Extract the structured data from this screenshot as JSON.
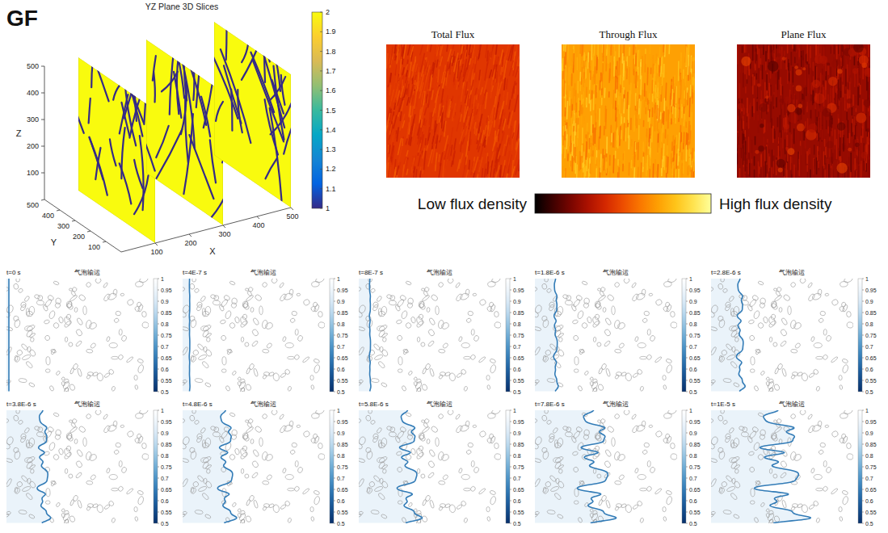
{
  "chart_data": [
    {
      "type": "slice3d",
      "label": "GF",
      "title": "YZ Plane 3D Slices",
      "x_label": "X",
      "y_label": "Y",
      "z_label": "Z",
      "xlim": [
        0,
        500
      ],
      "ylim": [
        0,
        500
      ],
      "zlim": [
        0,
        500
      ],
      "xticks": [
        100,
        200,
        300,
        400,
        500
      ],
      "yticks": [
        100,
        200,
        300,
        400,
        500
      ],
      "zticks": [
        100,
        200,
        300,
        400,
        500
      ],
      "slices": [
        100,
        300,
        500
      ],
      "colorbar": {
        "range": [
          1,
          2
        ],
        "ticks": [
          1,
          1.1,
          1.2,
          1.3,
          1.4,
          1.5,
          1.6,
          1.7,
          1.8,
          1.9,
          2
        ]
      }
    },
    {
      "type": "heatmap",
      "panels": [
        "Total Flux",
        "Through Flux",
        "Plane Flux"
      ],
      "colorbar": {
        "low_label": "Low flux density",
        "high_label": "High flux density"
      }
    },
    {
      "type": "field",
      "title": "气泡输运",
      "times": [
        {
          "value": 0,
          "label": "t=0 s"
        },
        {
          "value": 4e-07,
          "label": "t=4E-7 s"
        },
        {
          "value": 8e-07,
          "label": "t=8E-7 s"
        },
        {
          "value": 1.8e-06,
          "label": "t=1.8E-6 s"
        },
        {
          "value": 2.8e-06,
          "label": "t=2.8E-6 s"
        },
        {
          "value": 3.8e-06,
          "label": "t=3.8E-6 s"
        },
        {
          "value": 4.8e-06,
          "label": "t=4.8E-6 s"
        },
        {
          "value": 5.8e-06,
          "label": "t=5.8E-6 s"
        },
        {
          "value": 7.8e-06,
          "label": "t=7.8E-6 s"
        },
        {
          "value": 1e-05,
          "label": "t=1E-5 s"
        }
      ],
      "colorbar": {
        "range": [
          0.5,
          1
        ],
        "ticks": [
          0.5,
          0.55,
          0.6,
          0.65,
          0.7,
          0.75,
          0.8,
          0.85,
          0.9,
          0.95,
          1
        ]
      }
    }
  ]
}
